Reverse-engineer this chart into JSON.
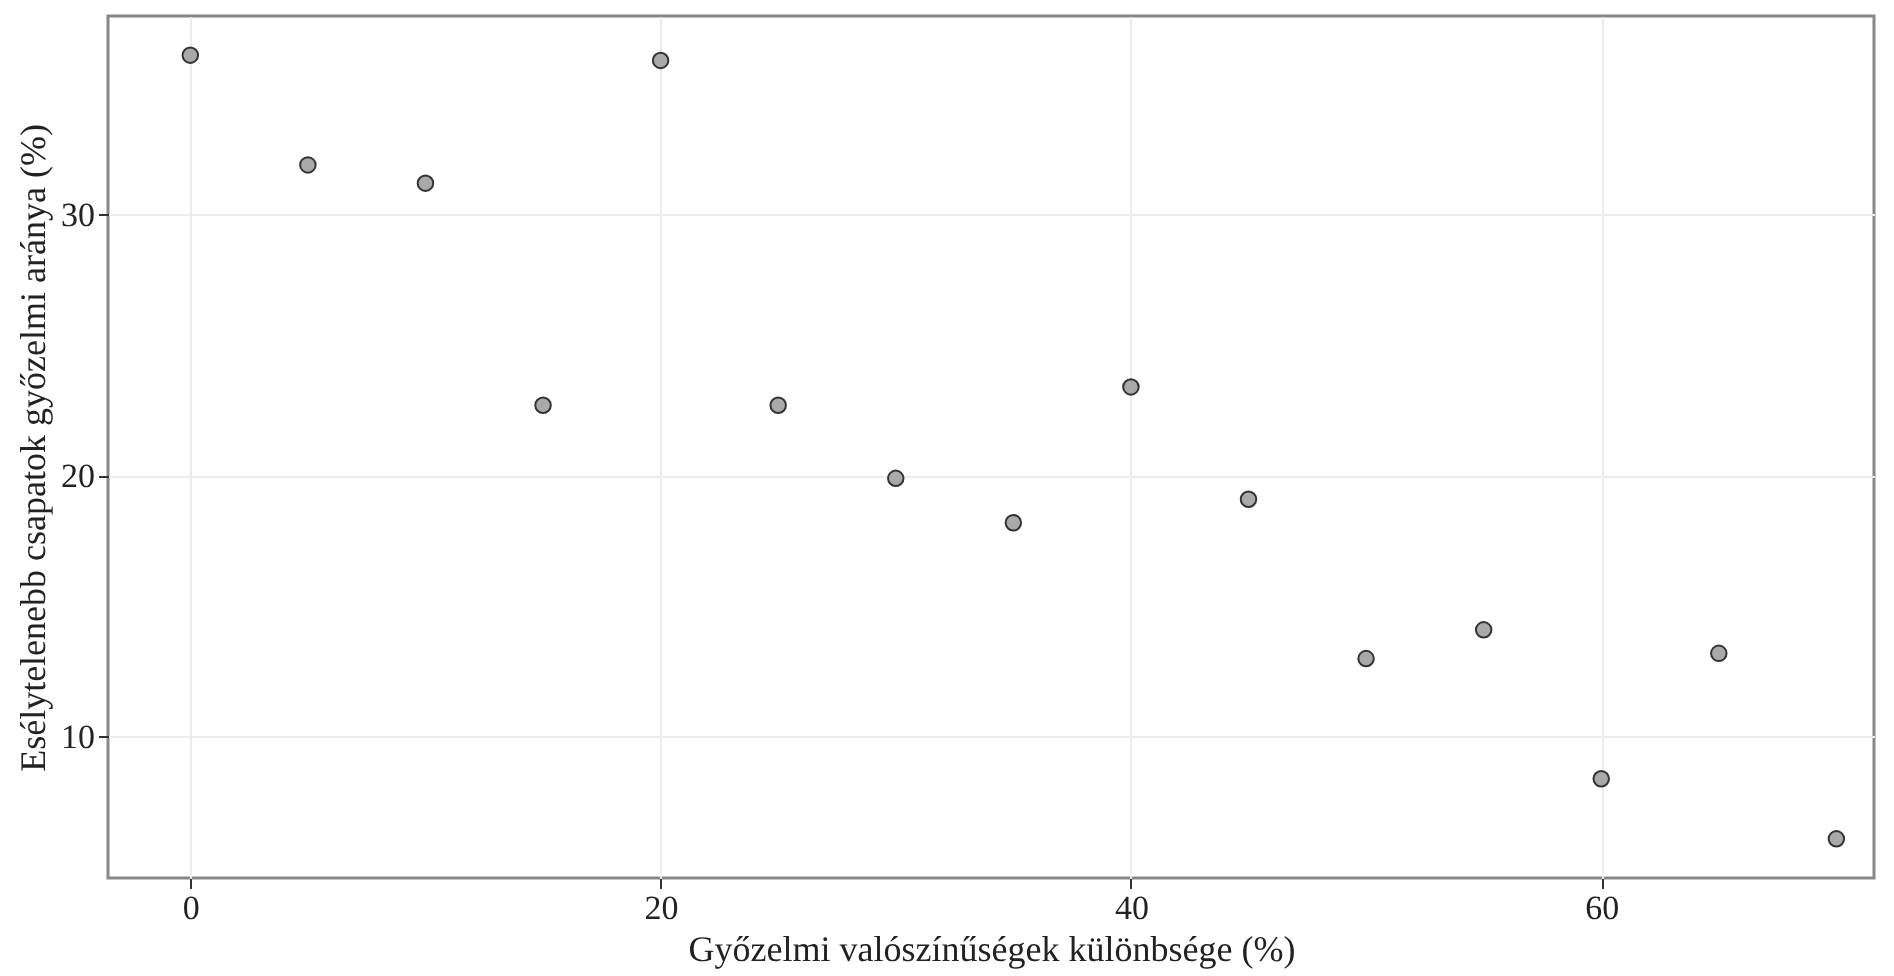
{
  "chart_data": {
    "type": "scatter",
    "xlabel": "Győzelmi valószínűségek különbsége (%)",
    "ylabel": "Esélytelenebb csapatok győzelmi aránya (%)",
    "x": [
      0,
      5,
      10,
      15,
      20,
      25,
      30,
      35,
      40,
      45,
      50,
      55,
      60,
      65,
      70
    ],
    "series": [
      {
        "color": "#a9a9a9",
        "values": [
          36.1,
          31.9,
          31.2,
          22.7,
          35.9,
          22.7,
          19.9,
          18.2,
          23.4,
          19.1,
          13.0,
          14.1,
          8.4,
          13.2,
          6.1
        ]
      }
    ],
    "xlim": [
      -3.5,
      71.6
    ],
    "ylim": [
      4.6,
      37.6
    ],
    "xticks": [
      0,
      20,
      40,
      60
    ],
    "yticks": [
      10,
      20,
      30
    ],
    "grid": true,
    "marker": "circle",
    "legend": false
  }
}
